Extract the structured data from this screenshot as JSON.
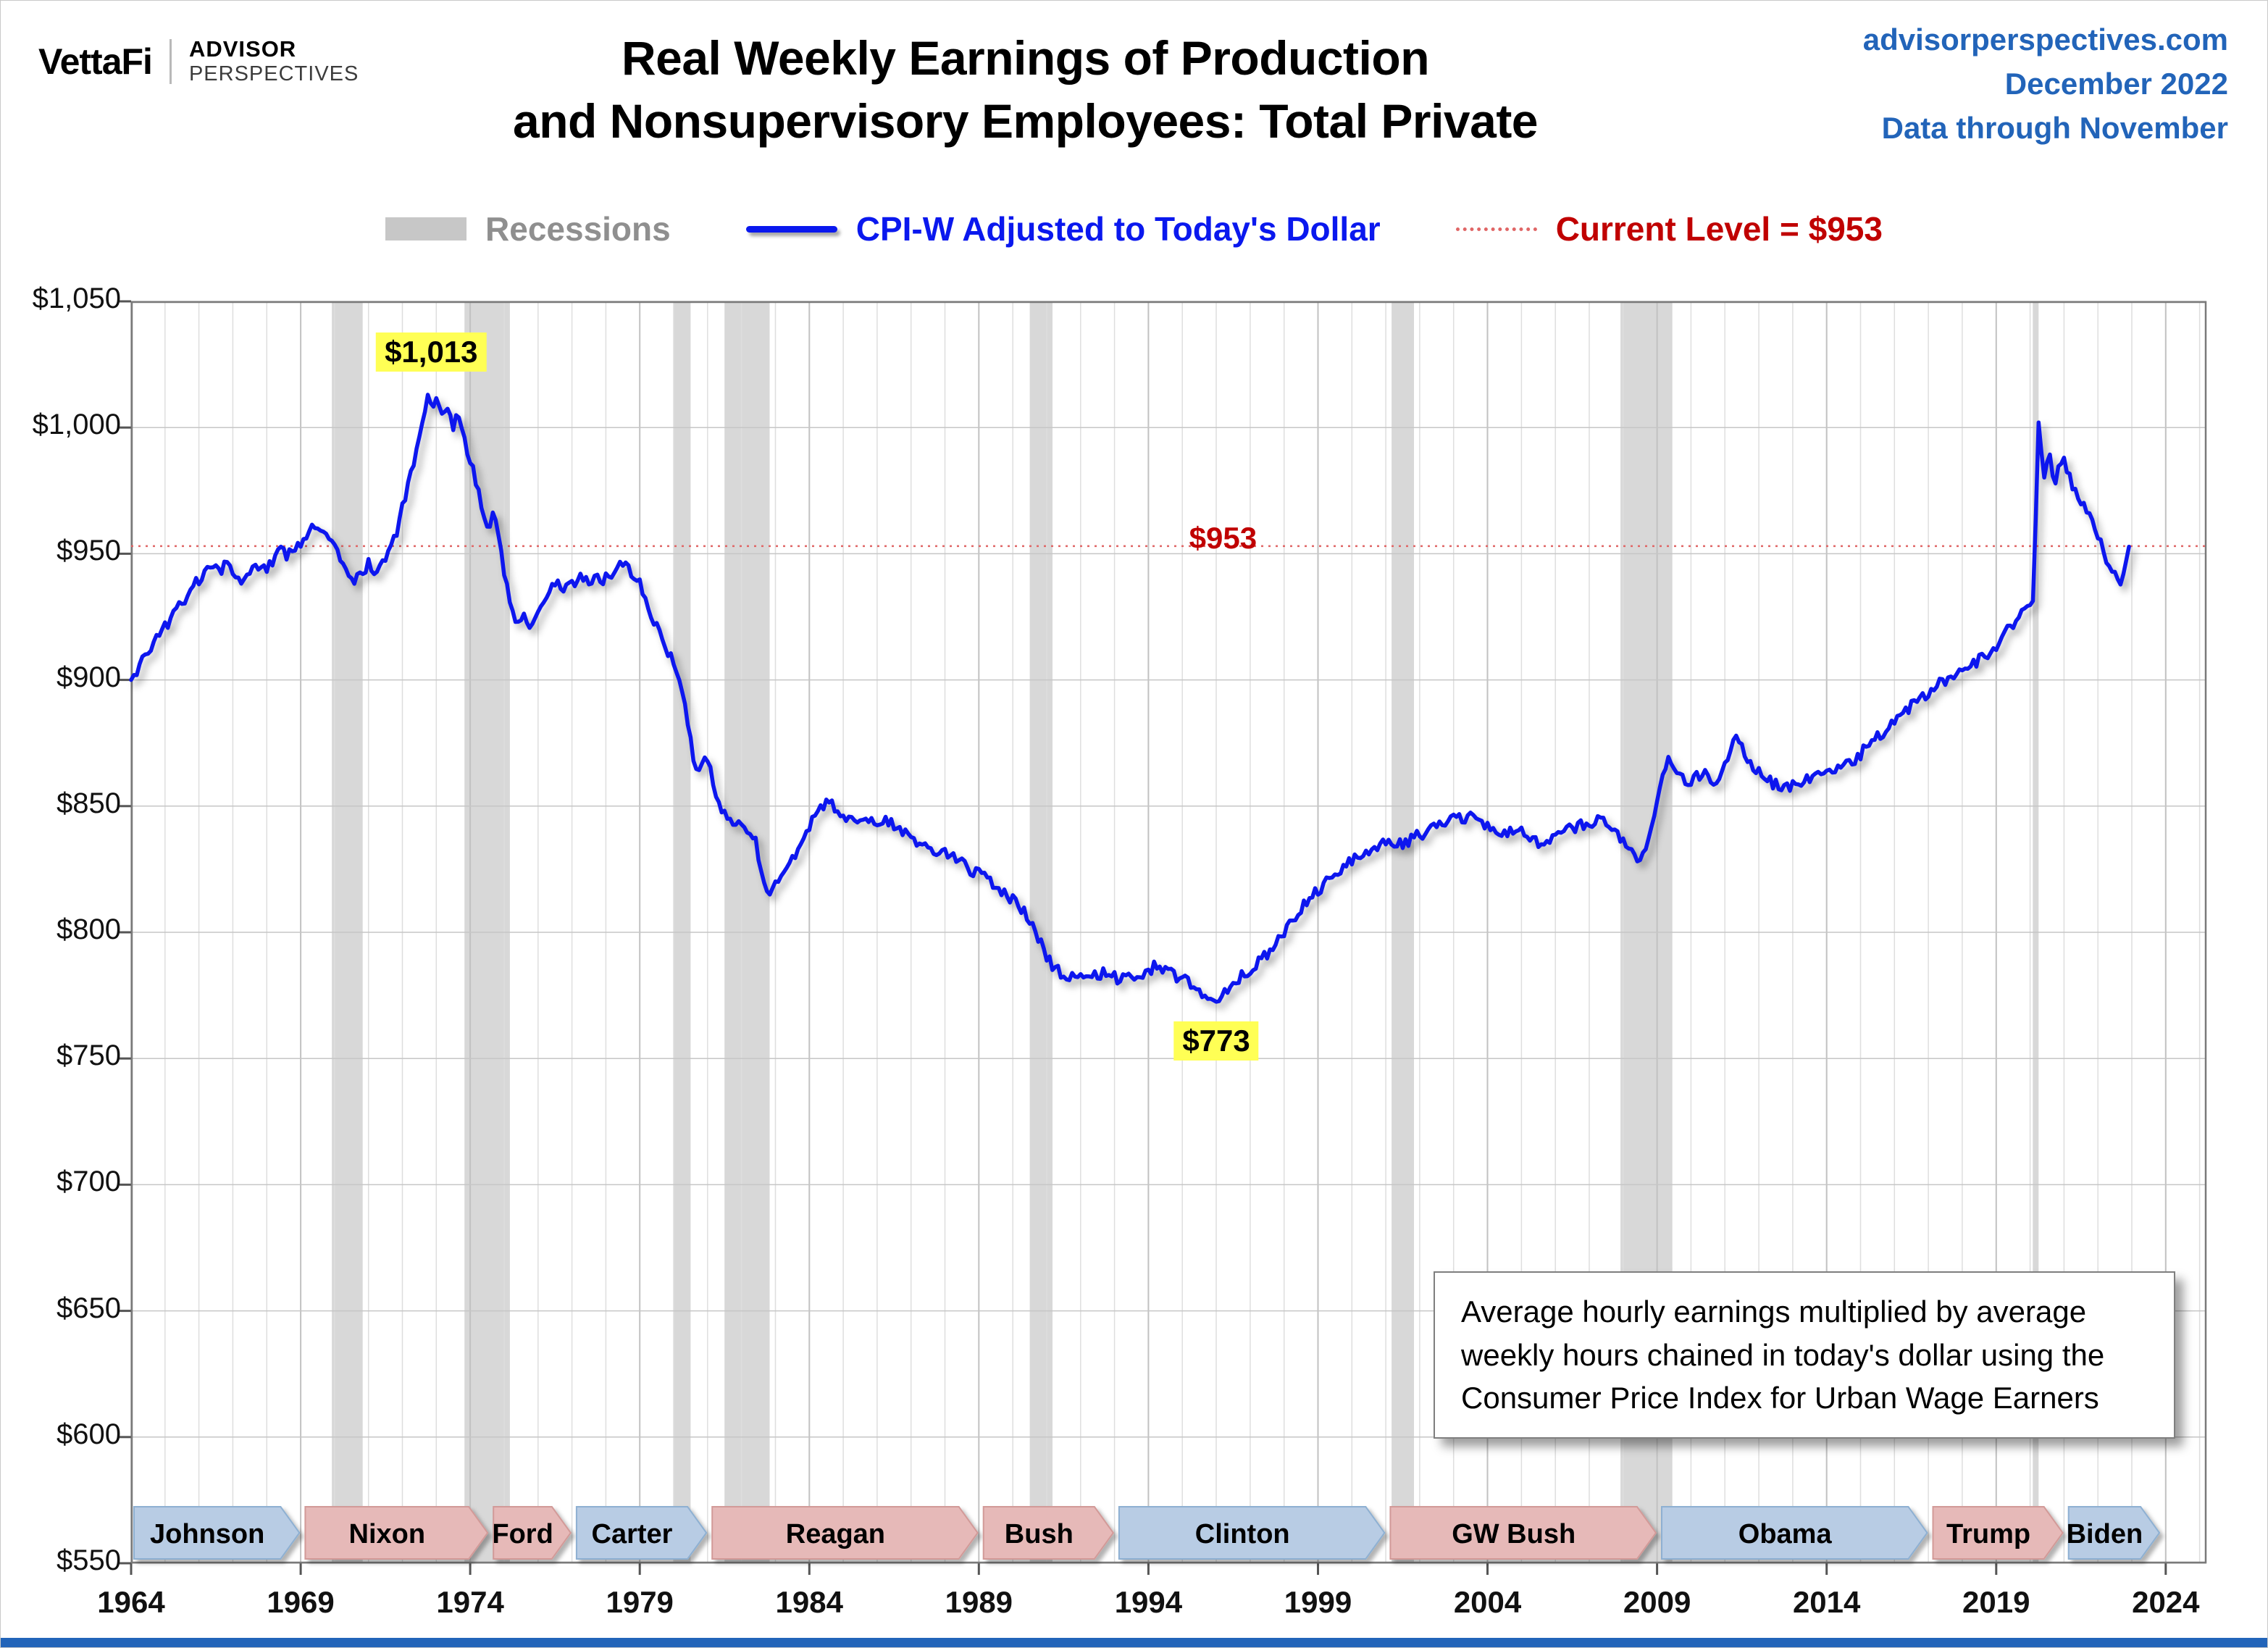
{
  "header": {
    "logo_vettafi": "VettaFi",
    "logo_advisor": "ADVISOR",
    "logo_perspectives": "PERSPECTIVES",
    "title_line1": "Real Weekly Earnings of Production",
    "title_line2": "and Nonsupervisory Employees: Total Private",
    "source": "advisorperspectives.com",
    "date": "December 2022",
    "through": "Data through November"
  },
  "legend": {
    "recessions": "Recessions",
    "series": "CPI-W Adjusted to Today's Dollar",
    "current": "Current Level = $953"
  },
  "annotations": {
    "peak": {
      "text": "$1,013",
      "x": 1972.85,
      "value": 1030
    },
    "trough": {
      "text": "$773",
      "x": 1996.0,
      "value": 757
    },
    "current_label": {
      "text": "$953",
      "x": 1996.2,
      "value": 956
    },
    "note": "Average hourly earnings multiplied by average weekly hours chained in today's dollar using the Consumer Price Index for Urban Wage Earners"
  },
  "colors": {
    "header_blue": "#2264b9",
    "line_blue": "#0a18ee",
    "red": "#c00000",
    "red_light": "#e06666",
    "yellow": "#ffff55",
    "recession": "#d8d8d8",
    "grid": "#dedede",
    "grid_major": "#c2c2c2",
    "grid_h": "#c6c6c6",
    "axis": "#7a7a7a",
    "legend_gray": "#8f8f8f",
    "party": {
      "D": {
        "fill": "#b8cce4",
        "stroke": "#8eb0d2"
      },
      "R": {
        "fill": "#e6b9b8",
        "stroke": "#d29a98"
      }
    }
  },
  "chart_data": {
    "type": "line",
    "title": "Real Weekly Earnings of Production and Nonsupervisory Employees: Total Private",
    "series_name": "CPI-W Adjusted to Today's Dollar",
    "x_range": [
      1964,
      2025.2
    ],
    "y_range": [
      550,
      1050
    ],
    "series_end": 2022.917,
    "current_level": 953,
    "peak_value": 1013,
    "trough_value": 773,
    "x_ticks": [
      1964,
      1969,
      1974,
      1979,
      1984,
      1989,
      1994,
      1999,
      2004,
      2009,
      2014,
      2019,
      2024
    ],
    "y_ticks": [
      {
        "v": 1050,
        "label": "$1,050"
      },
      {
        "v": 1000,
        "label": "$1,000"
      },
      {
        "v": 950,
        "label": "$950"
      },
      {
        "v": 900,
        "label": "$900"
      },
      {
        "v": 850,
        "label": "$850"
      },
      {
        "v": 800,
        "label": "$800"
      },
      {
        "v": 750,
        "label": "$750"
      },
      {
        "v": 700,
        "label": "$700"
      },
      {
        "v": 650,
        "label": "$650"
      },
      {
        "v": 600,
        "label": "$600"
      },
      {
        "v": 550,
        "label": "$550"
      }
    ],
    "recessions": [
      [
        1969.92,
        1970.83
      ],
      [
        1973.83,
        1975.17
      ],
      [
        1980.0,
        1980.5
      ],
      [
        1981.5,
        1982.83
      ],
      [
        1990.5,
        1991.17
      ],
      [
        2001.17,
        2001.83
      ],
      [
        2007.92,
        2009.45
      ],
      [
        2020.08,
        2020.25
      ]
    ],
    "presidents": [
      {
        "name": "Johnson",
        "start": 1964.0,
        "end": 1969.05,
        "party": "D"
      },
      {
        "name": "Nixon",
        "start": 1969.05,
        "end": 1974.6,
        "party": "R"
      },
      {
        "name": "Ford",
        "start": 1974.6,
        "end": 1977.05,
        "party": "R"
      },
      {
        "name": "Carter",
        "start": 1977.05,
        "end": 1981.05,
        "party": "D"
      },
      {
        "name": "Reagan",
        "start": 1981.05,
        "end": 1989.05,
        "party": "R"
      },
      {
        "name": "Bush",
        "start": 1989.05,
        "end": 1993.05,
        "party": "R"
      },
      {
        "name": "Clinton",
        "start": 1993.05,
        "end": 2001.05,
        "party": "D"
      },
      {
        "name": "GW Bush",
        "start": 2001.05,
        "end": 2009.05,
        "party": "R"
      },
      {
        "name": "Obama",
        "start": 2009.05,
        "end": 2017.05,
        "party": "D"
      },
      {
        "name": "Trump",
        "start": 2017.05,
        "end": 2021.05,
        "party": "R"
      },
      {
        "name": "Biden",
        "start": 2021.05,
        "end": 2023.9,
        "party": "D"
      }
    ],
    "anchors": [
      [
        1964.0,
        900
      ],
      [
        1964.17,
        904
      ],
      [
        1964.33,
        907
      ],
      [
        1964.5,
        911
      ],
      [
        1964.67,
        915
      ],
      [
        1964.83,
        918
      ],
      [
        1965.0,
        921
      ],
      [
        1965.2,
        925
      ],
      [
        1965.4,
        929
      ],
      [
        1965.6,
        932
      ],
      [
        1965.8,
        936
      ],
      [
        1966.0,
        940
      ],
      [
        1966.2,
        944
      ],
      [
        1966.4,
        946
      ],
      [
        1966.6,
        943
      ],
      [
        1966.8,
        946
      ],
      [
        1967.0,
        942
      ],
      [
        1967.2,
        939
      ],
      [
        1967.4,
        943
      ],
      [
        1967.6,
        945
      ],
      [
        1967.8,
        942
      ],
      [
        1968.0,
        945
      ],
      [
        1968.2,
        948
      ],
      [
        1968.4,
        951
      ],
      [
        1968.6,
        949
      ],
      [
        1968.8,
        952
      ],
      [
        1969.0,
        955
      ],
      [
        1969.2,
        958
      ],
      [
        1969.4,
        960
      ],
      [
        1969.6,
        958
      ],
      [
        1969.8,
        956
      ],
      [
        1970.0,
        953
      ],
      [
        1970.2,
        948
      ],
      [
        1970.4,
        943
      ],
      [
        1970.6,
        940
      ],
      [
        1970.8,
        942
      ],
      [
        1971.0,
        946
      ],
      [
        1971.2,
        943
      ],
      [
        1971.4,
        947
      ],
      [
        1971.6,
        951
      ],
      [
        1971.8,
        957
      ],
      [
        1972.0,
        968
      ],
      [
        1972.2,
        978
      ],
      [
        1972.4,
        990
      ],
      [
        1972.6,
        1001
      ],
      [
        1972.75,
        1013
      ],
      [
        1972.9,
        1007
      ],
      [
        1973.05,
        1011
      ],
      [
        1973.2,
        1005
      ],
      [
        1973.35,
        1008
      ],
      [
        1973.5,
        1001
      ],
      [
        1973.65,
        1004
      ],
      [
        1973.8,
        996
      ],
      [
        1974.0,
        988
      ],
      [
        1974.2,
        976
      ],
      [
        1974.4,
        966
      ],
      [
        1974.55,
        961
      ],
      [
        1974.7,
        965
      ],
      [
        1974.85,
        955
      ],
      [
        1975.0,
        942
      ],
      [
        1975.15,
        931
      ],
      [
        1975.3,
        924
      ],
      [
        1975.45,
        921
      ],
      [
        1975.6,
        926
      ],
      [
        1975.75,
        920
      ],
      [
        1975.9,
        924
      ],
      [
        1976.1,
        929
      ],
      [
        1976.3,
        935
      ],
      [
        1976.5,
        939
      ],
      [
        1976.7,
        936
      ],
      [
        1976.9,
        941
      ],
      [
        1977.1,
        938
      ],
      [
        1977.3,
        942
      ],
      [
        1977.5,
        937
      ],
      [
        1977.7,
        943
      ],
      [
        1977.9,
        939
      ],
      [
        1978.1,
        941
      ],
      [
        1978.3,
        945
      ],
      [
        1978.5,
        947
      ],
      [
        1978.7,
        943
      ],
      [
        1978.9,
        940
      ],
      [
        1979.1,
        935
      ],
      [
        1979.3,
        928
      ],
      [
        1979.5,
        921
      ],
      [
        1979.7,
        915
      ],
      [
        1979.9,
        909
      ],
      [
        1980.1,
        903
      ],
      [
        1980.3,
        893
      ],
      [
        1980.5,
        878
      ],
      [
        1980.65,
        863
      ],
      [
        1980.8,
        866
      ],
      [
        1981.0,
        869
      ],
      [
        1981.2,
        856
      ],
      [
        1981.4,
        849
      ],
      [
        1981.6,
        846
      ],
      [
        1981.8,
        843
      ],
      [
        1982.0,
        845
      ],
      [
        1982.2,
        841
      ],
      [
        1982.4,
        837
      ],
      [
        1982.6,
        823
      ],
      [
        1982.8,
        815
      ],
      [
        1983.0,
        818
      ],
      [
        1983.2,
        822
      ],
      [
        1983.4,
        827
      ],
      [
        1983.6,
        832
      ],
      [
        1983.8,
        837
      ],
      [
        1984.0,
        842
      ],
      [
        1984.2,
        846
      ],
      [
        1984.4,
        850
      ],
      [
        1984.6,
        852
      ],
      [
        1984.8,
        849
      ],
      [
        1985.0,
        846
      ],
      [
        1985.3,
        844
      ],
      [
        1985.6,
        847
      ],
      [
        1985.9,
        844
      ],
      [
        1986.2,
        845
      ],
      [
        1986.5,
        843
      ],
      [
        1986.8,
        840
      ],
      [
        1987.1,
        837
      ],
      [
        1987.4,
        835
      ],
      [
        1987.7,
        833
      ],
      [
        1988.0,
        831
      ],
      [
        1988.3,
        829
      ],
      [
        1988.6,
        826
      ],
      [
        1988.9,
        824
      ],
      [
        1989.2,
        821
      ],
      [
        1989.5,
        818
      ],
      [
        1989.8,
        815
      ],
      [
        1990.1,
        812
      ],
      [
        1990.4,
        807
      ],
      [
        1990.7,
        800
      ],
      [
        1991.0,
        790
      ],
      [
        1991.3,
        785
      ],
      [
        1991.6,
        783
      ],
      [
        1991.9,
        782
      ],
      [
        1992.2,
        784
      ],
      [
        1992.5,
        783
      ],
      [
        1992.8,
        785
      ],
      [
        1993.1,
        781
      ],
      [
        1993.4,
        783
      ],
      [
        1993.7,
        782
      ],
      [
        1994.0,
        785
      ],
      [
        1994.3,
        787
      ],
      [
        1994.6,
        784
      ],
      [
        1994.9,
        782
      ],
      [
        1995.2,
        780
      ],
      [
        1995.5,
        777
      ],
      [
        1995.9,
        773
      ],
      [
        1996.2,
        775
      ],
      [
        1996.5,
        779
      ],
      [
        1996.8,
        783
      ],
      [
        1997.1,
        786
      ],
      [
        1997.4,
        790
      ],
      [
        1997.7,
        794
      ],
      [
        1998.0,
        800
      ],
      [
        1998.3,
        806
      ],
      [
        1998.6,
        811
      ],
      [
        1998.9,
        815
      ],
      [
        1999.2,
        819
      ],
      [
        1999.5,
        823
      ],
      [
        1999.8,
        827
      ],
      [
        2000.1,
        830
      ],
      [
        2000.4,
        832
      ],
      [
        2000.7,
        834
      ],
      [
        2001.0,
        836
      ],
      [
        2001.3,
        834
      ],
      [
        2001.6,
        836
      ],
      [
        2001.9,
        838
      ],
      [
        2002.2,
        840
      ],
      [
        2002.5,
        842
      ],
      [
        2002.8,
        844
      ],
      [
        2003.1,
        845
      ],
      [
        2003.4,
        846
      ],
      [
        2003.7,
        844
      ],
      [
        2004.0,
        843
      ],
      [
        2004.3,
        841
      ],
      [
        2004.6,
        839
      ],
      [
        2004.9,
        840
      ],
      [
        2005.2,
        838
      ],
      [
        2005.5,
        836
      ],
      [
        2005.8,
        837
      ],
      [
        2006.1,
        839
      ],
      [
        2006.4,
        841
      ],
      [
        2006.7,
        842
      ],
      [
        2007.0,
        843
      ],
      [
        2007.3,
        845
      ],
      [
        2007.6,
        842
      ],
      [
        2007.9,
        838
      ],
      [
        2008.2,
        832
      ],
      [
        2008.45,
        827
      ],
      [
        2008.7,
        834
      ],
      [
        2008.9,
        846
      ],
      [
        2009.1,
        858
      ],
      [
        2009.3,
        869
      ],
      [
        2009.5,
        866
      ],
      [
        2009.7,
        863
      ],
      [
        2009.9,
        859
      ],
      [
        2010.1,
        861
      ],
      [
        2010.4,
        863
      ],
      [
        2010.7,
        860
      ],
      [
        2011.0,
        866
      ],
      [
        2011.2,
        875
      ],
      [
        2011.35,
        877
      ],
      [
        2011.55,
        871
      ],
      [
        2011.8,
        866
      ],
      [
        2012.1,
        862
      ],
      [
        2012.4,
        859
      ],
      [
        2012.7,
        857
      ],
      [
        2013.0,
        858
      ],
      [
        2013.3,
        860
      ],
      [
        2013.6,
        862
      ],
      [
        2013.9,
        861
      ],
      [
        2014.2,
        864
      ],
      [
        2014.5,
        866
      ],
      [
        2014.8,
        868
      ],
      [
        2015.1,
        872
      ],
      [
        2015.4,
        876
      ],
      [
        2015.7,
        880
      ],
      [
        2016.0,
        884
      ],
      [
        2016.3,
        888
      ],
      [
        2016.6,
        891
      ],
      [
        2016.9,
        894
      ],
      [
        2017.2,
        897
      ],
      [
        2017.5,
        900
      ],
      [
        2017.8,
        903
      ],
      [
        2018.1,
        905
      ],
      [
        2018.4,
        907
      ],
      [
        2018.7,
        910
      ],
      [
        2019.0,
        914
      ],
      [
        2019.3,
        919
      ],
      [
        2019.6,
        924
      ],
      [
        2019.9,
        928
      ],
      [
        2020.1,
        934
      ],
      [
        2020.25,
        1002
      ],
      [
        2020.4,
        981
      ],
      [
        2020.55,
        991
      ],
      [
        2020.7,
        977
      ],
      [
        2020.85,
        985
      ],
      [
        2021.0,
        989
      ],
      [
        2021.15,
        980
      ],
      [
        2021.3,
        975
      ],
      [
        2021.45,
        971
      ],
      [
        2021.6,
        968
      ],
      [
        2021.75,
        965
      ],
      [
        2021.9,
        961
      ],
      [
        2022.05,
        956
      ],
      [
        2022.2,
        950
      ],
      [
        2022.35,
        945
      ],
      [
        2022.5,
        941
      ],
      [
        2022.65,
        938
      ],
      [
        2022.8,
        945
      ],
      [
        2022.92,
        953
      ]
    ]
  }
}
